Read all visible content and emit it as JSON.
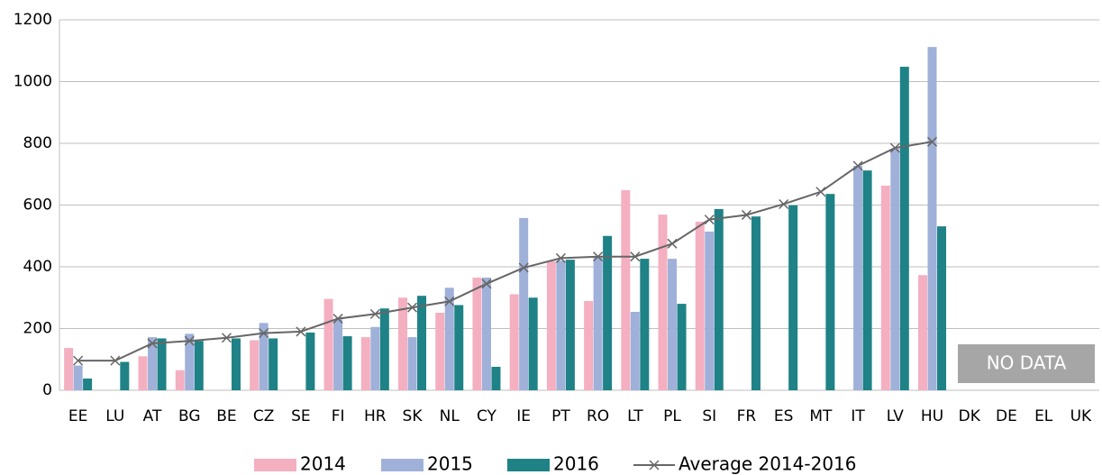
{
  "chart_data": {
    "type": "bar",
    "categories": [
      "EE",
      "LU",
      "AT",
      "BG",
      "BE",
      "CZ",
      "SE",
      "FI",
      "HR",
      "SK",
      "NL",
      "CY",
      "IE",
      "PT",
      "RO",
      "LT",
      "PL",
      "SI",
      "FR",
      "ES",
      "MT",
      "IT",
      "LV",
      "HU",
      "DK",
      "DE",
      "EL",
      "UK"
    ],
    "series": [
      {
        "name": "2014",
        "color": "#f4afc1",
        "values": [
          137,
          null,
          110,
          65,
          null,
          162,
          null,
          296,
          172,
          300,
          251,
          365,
          311,
          418,
          289,
          648,
          569,
          546,
          null,
          null,
          null,
          null,
          663,
          373,
          null,
          null,
          null,
          null
        ]
      },
      {
        "name": "2015",
        "color": "#9fb0d9",
        "values": [
          80,
          null,
          172,
          183,
          null,
          218,
          null,
          230,
          205,
          172,
          332,
          365,
          558,
          420,
          432,
          254,
          426,
          514,
          null,
          null,
          null,
          727,
          782,
          1112,
          null,
          null,
          null,
          null
        ]
      },
      {
        "name": "2016",
        "color": "#1e8286",
        "values": [
          38,
          92,
          168,
          160,
          168,
          168,
          187,
          175,
          265,
          306,
          276,
          76,
          300,
          423,
          500,
          426,
          280,
          587,
          563,
          599,
          636,
          712,
          1048,
          531,
          null,
          null,
          null,
          null
        ]
      },
      {
        "name": "Average 2014-2016",
        "color": "#666666",
        "type": "line",
        "values": [
          96,
          96,
          152,
          160,
          170,
          185,
          190,
          232,
          247,
          268,
          288,
          345,
          397,
          428,
          433,
          433,
          475,
          553,
          568,
          603,
          643,
          727,
          785,
          805,
          null,
          null,
          null,
          null
        ]
      }
    ],
    "annotation": "NO DATA",
    "ylim": [
      0,
      1200
    ],
    "yticks": [
      0,
      200,
      400,
      600,
      800,
      1000,
      1200
    ],
    "grid": true,
    "legend": "bottom"
  }
}
